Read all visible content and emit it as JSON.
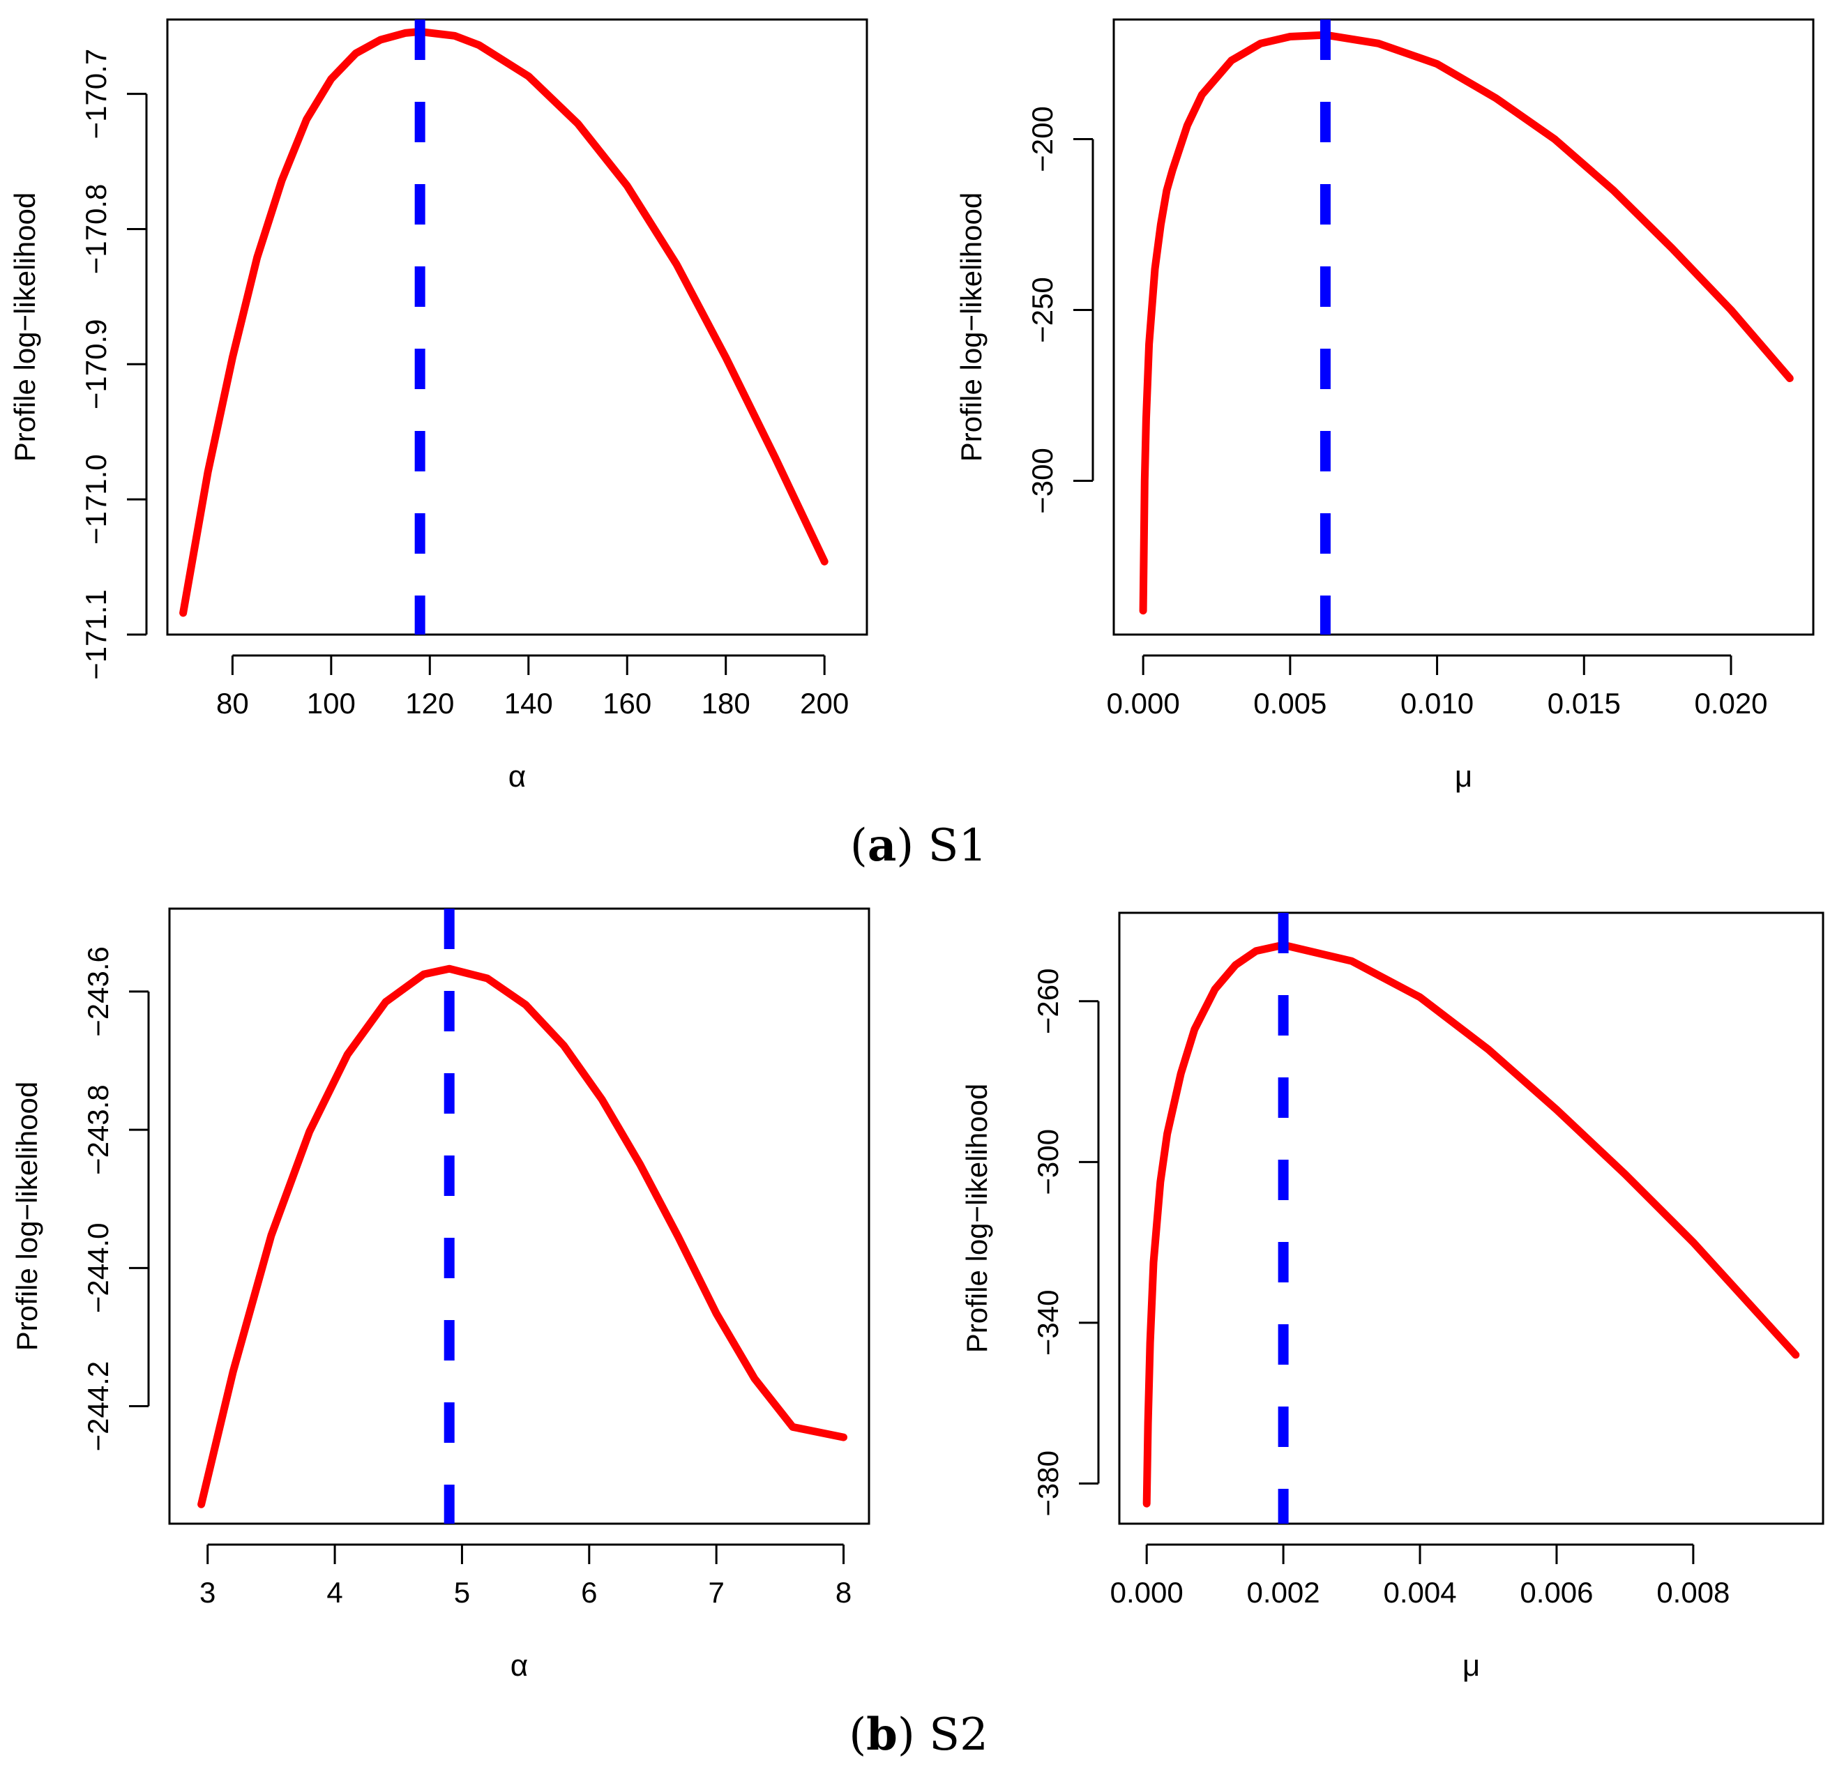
{
  "colors": {
    "curve": "#ff0000",
    "mle_line": "#0000ff",
    "axis": "#000000"
  },
  "captions": [
    {
      "tag": "a",
      "label": "S1"
    },
    {
      "tag": "b",
      "label": "S2"
    }
  ],
  "chart_data": [
    {
      "type": "line",
      "panel": "S1-alpha",
      "xlabel": "α",
      "ylabel": "Profile log−likelihood",
      "xlim": [
        66.8,
        208.6
      ],
      "ylim": [
        -171.1,
        -170.645
      ],
      "xticks": [
        80,
        100,
        120,
        140,
        160,
        180,
        200
      ],
      "xtick_labels": [
        "80",
        "100",
        "120",
        "140",
        "160",
        "180",
        "200"
      ],
      "yticks": [
        -171.1,
        -171.0,
        -170.9,
        -170.8,
        -170.7
      ],
      "ytick_labels": [
        "−171.1",
        "−171.0",
        "−170.9",
        "−170.8",
        "−170.7"
      ],
      "mle": 118,
      "series": [
        {
          "name": "profile log-likelihood",
          "x": [
            70,
            75,
            80,
            85,
            90,
            95,
            100,
            105,
            110,
            115,
            118,
            125,
            130,
            140,
            150,
            160,
            170,
            180,
            190,
            200
          ],
          "y": [
            -171.084,
            -170.98,
            -170.895,
            -170.821,
            -170.764,
            -170.719,
            -170.689,
            -170.67,
            -170.66,
            -170.655,
            -170.654,
            -170.657,
            -170.664,
            -170.687,
            -170.722,
            -170.768,
            -170.826,
            -170.895,
            -170.969,
            -171.046
          ]
        }
      ]
    },
    {
      "type": "line",
      "panel": "S1-mu",
      "xlabel": "μ",
      "ylabel": "Profile log−likelihood",
      "xlim": [
        -0.001,
        0.0228
      ],
      "ylim": [
        -345,
        -165
      ],
      "xticks": [
        0.0,
        0.005,
        0.01,
        0.015,
        0.02
      ],
      "xtick_labels": [
        "0.000",
        "0.005",
        "0.010",
        "0.015",
        "0.020"
      ],
      "yticks": [
        -300,
        -250,
        -200
      ],
      "ytick_labels": [
        "−300",
        "−250",
        "−200"
      ],
      "mle": 0.0062,
      "series": [
        {
          "name": "profile log-likelihood",
          "x": [
            0.0,
            5e-05,
            0.0001,
            0.0002,
            0.0004,
            0.0006,
            0.0008,
            0.001,
            0.0015,
            0.002,
            0.003,
            0.004,
            0.005,
            0.0062,
            0.008,
            0.01,
            0.012,
            0.014,
            0.016,
            0.018,
            0.02,
            0.022
          ],
          "y": [
            -338,
            -300,
            -282,
            -260,
            -238,
            -225,
            -215,
            -209,
            -196,
            -187,
            -177,
            -172,
            -170,
            -169.5,
            -172,
            -178,
            -188,
            -200,
            -215,
            -232,
            -250,
            -270
          ]
        }
      ]
    },
    {
      "type": "line",
      "panel": "S2-alpha",
      "xlabel": "α",
      "ylabel": "Profile log−likelihood",
      "xlim": [
        2.7,
        8.2
      ],
      "ylim": [
        -244.37,
        -243.48
      ],
      "xticks": [
        3,
        4,
        5,
        6,
        7,
        8
      ],
      "xtick_labels": [
        "3",
        "4",
        "5",
        "6",
        "7",
        "8"
      ],
      "yticks": [
        -244.2,
        -244.0,
        -243.8,
        -243.6
      ],
      "ytick_labels": [
        "−244.2",
        "−244.0",
        "−243.8",
        "−243.6"
      ],
      "mle": 4.9,
      "series": [
        {
          "name": "profile log-likelihood",
          "x": [
            2.95,
            3.2,
            3.5,
            3.8,
            4.1,
            4.4,
            4.7,
            4.9,
            5.2,
            5.5,
            5.8,
            6.1,
            6.4,
            6.7,
            7.0,
            7.3,
            7.6,
            8.0
          ],
          "y": [
            -244.342,
            -244.15,
            -243.953,
            -243.803,
            -243.691,
            -243.615,
            -243.575,
            -243.567,
            -243.581,
            -243.619,
            -243.678,
            -243.756,
            -243.85,
            -243.955,
            -244.066,
            -244.16,
            -244.23,
            -244.245
          ]
        }
      ]
    },
    {
      "type": "line",
      "panel": "S2-mu",
      "xlabel": "μ",
      "ylabel": "Profile log−likelihood",
      "xlim": [
        -0.0004,
        0.0099
      ],
      "ylim": [
        -390,
        -238
      ],
      "xticks": [
        0.0,
        0.002,
        0.004,
        0.006,
        0.008
      ],
      "xtick_labels": [
        "0.000",
        "0.002",
        "0.004",
        "0.006",
        "0.008"
      ],
      "yticks": [
        -380,
        -340,
        -300,
        -260
      ],
      "ytick_labels": [
        "−380",
        "−340",
        "−300",
        "−260"
      ],
      "mle": 0.002,
      "series": [
        {
          "name": "profile log-likelihood",
          "x": [
            0.0,
            2e-05,
            5e-05,
            0.0001,
            0.0002,
            0.0003,
            0.0005,
            0.0007,
            0.001,
            0.0013,
            0.0016,
            0.002,
            0.003,
            0.004,
            0.005,
            0.006,
            0.007,
            0.008,
            0.0095
          ],
          "y": [
            -385,
            -365,
            -345,
            -325,
            -305,
            -293,
            -278,
            -267,
            -257,
            -251,
            -247.5,
            -246,
            -250,
            -259,
            -272,
            -287,
            -303,
            -320,
            -348
          ]
        }
      ]
    }
  ]
}
